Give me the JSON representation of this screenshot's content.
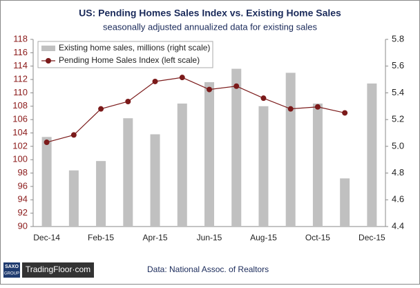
{
  "chart_data": {
    "type": "bar-line",
    "title": "US: Pending Homes Sales Index vs. Existing Home Sales",
    "subtitle": "seasonally adjusted annualized data for existing sales",
    "categories": [
      "Dec-14",
      null,
      "Feb-15",
      null,
      "Apr-15",
      null,
      "Jun-15",
      null,
      "Aug-15",
      null,
      "Oct-15",
      null,
      "Dec-15"
    ],
    "series": [
      {
        "name": "Existing home sales, millions (right scale)",
        "type": "bar",
        "axis": "y2",
        "color": "#c0c0c0",
        "values": [
          5.07,
          4.82,
          4.89,
          5.21,
          5.09,
          5.32,
          5.48,
          5.58,
          5.3,
          5.55,
          5.32,
          4.76,
          5.47
        ]
      },
      {
        "name": "Pending Home Sales Index (left scale)",
        "type": "line",
        "color": "#7b1a1a",
        "values": [
          102.6,
          103.7,
          107.6,
          108.7,
          111.7,
          112.3,
          110.5,
          111.0,
          109.2,
          107.6,
          107.9,
          107.0,
          null
        ]
      }
    ],
    "ylim": [
      90,
      118
    ],
    "yticks": [
      90,
      92,
      94,
      96,
      98,
      100,
      102,
      104,
      106,
      108,
      110,
      112,
      114,
      116,
      118
    ],
    "y2lim": [
      4.4,
      5.8
    ],
    "y2ticks": [
      4.4,
      4.6,
      4.8,
      {
        "value": 5,
        "label": "5.0"
      },
      5.2,
      5.4,
      5.6,
      5.8
    ],
    "legend": "upper left",
    "grid": false
  },
  "footer": {
    "logo_top": "SAXO",
    "logo_bottom": "GROUP",
    "brand": "TradingFloor·com",
    "source": "Data: National Assoc. of Realtors"
  }
}
